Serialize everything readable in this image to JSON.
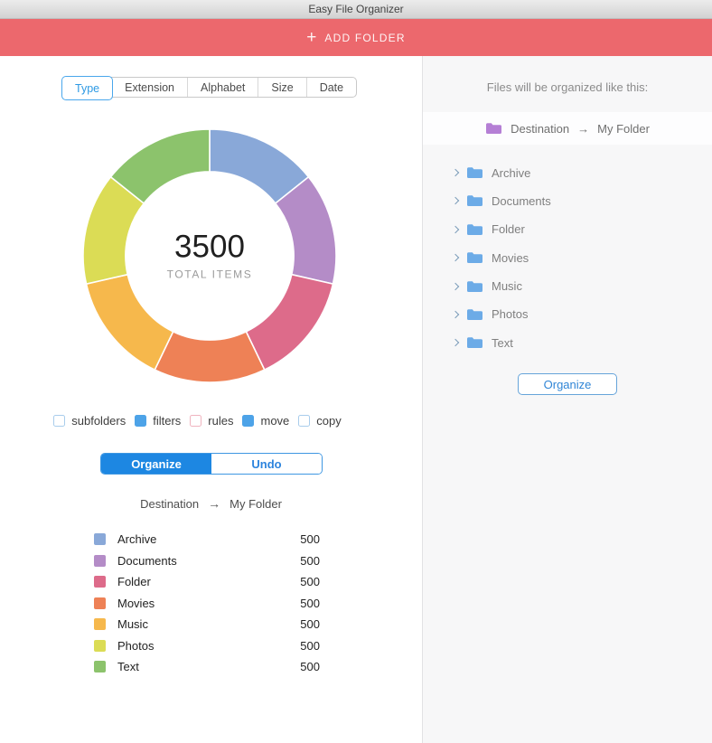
{
  "window": {
    "title": "Easy File Organizer"
  },
  "banner": {
    "label": "ADD FOLDER",
    "plus": "+",
    "background": "#ec686d"
  },
  "tabs": [
    {
      "label": "Type",
      "selected": true
    },
    {
      "label": "Extension",
      "selected": false
    },
    {
      "label": "Alphabet",
      "selected": false
    },
    {
      "label": "Size",
      "selected": false
    },
    {
      "label": "Date",
      "selected": false
    }
  ],
  "chart_data": {
    "type": "pie",
    "subtype": "donut",
    "categories": [
      "Archive",
      "Documents",
      "Folder",
      "Movies",
      "Music",
      "Photos",
      "Text"
    ],
    "values": [
      500,
      500,
      500,
      500,
      500,
      500,
      500
    ],
    "colors": [
      "#89a8d8",
      "#b48cc7",
      "#dd6b8a",
      "#ee8156",
      "#f6b84c",
      "#dbdc55",
      "#8cc36c"
    ],
    "total": 3500,
    "center_value": "3500",
    "center_label": "TOTAL ITEMS",
    "start_angle_deg": -90,
    "inner_radius_ratio": 0.665,
    "legend_values": [
      "500",
      "500",
      "500",
      "500",
      "500",
      "500",
      "500"
    ]
  },
  "options": [
    {
      "label": "subfolders",
      "checked": false,
      "border": "#a9cdec",
      "fill": "#ffffff"
    },
    {
      "label": "filters",
      "checked": true,
      "border": "#4da3e8",
      "fill": "#4da3e8"
    },
    {
      "label": "rules",
      "checked": false,
      "border": "#f0b4bf",
      "fill": "#ffffff"
    },
    {
      "label": "move",
      "checked": true,
      "border": "#4da3e8",
      "fill": "#4da3e8"
    },
    {
      "label": "copy",
      "checked": false,
      "border": "#a9cdec",
      "fill": "#ffffff"
    }
  ],
  "actions": {
    "organize": "Organize",
    "undo": "Undo"
  },
  "destination": {
    "label": "Destination",
    "arrow": "→",
    "value": "My Folder"
  },
  "right_panel": {
    "header": "Files will be organized like this:",
    "destination": {
      "label": "Destination",
      "arrow": "→",
      "value": "My Folder"
    },
    "destination_folder_color": "#b57fd5",
    "folders": [
      "Archive",
      "Documents",
      "Folder",
      "Movies",
      "Music",
      "Photos",
      "Text"
    ],
    "folder_color": "#6cabe7",
    "organize": "Organize"
  }
}
